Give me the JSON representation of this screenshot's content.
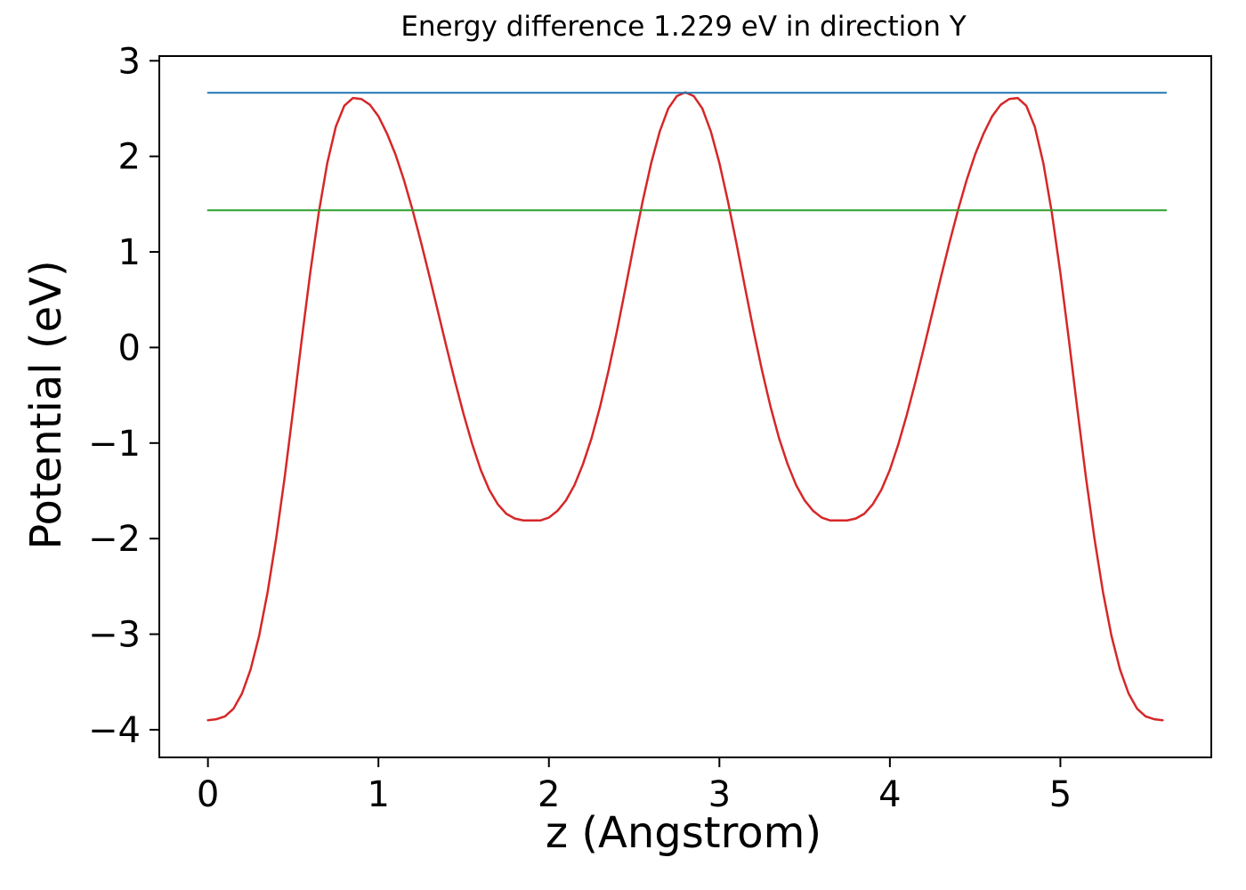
{
  "figure": {
    "background": "#ffffff"
  },
  "chart_data": {
    "type": "line",
    "title": "Energy difference 1.229 eV in direction Y",
    "xlabel": "z (Angstrom)",
    "ylabel": "Potential (eV)",
    "xlim": [
      -0.28,
      5.88
    ],
    "ylim": [
      -4.28,
      3.04
    ],
    "xticks": [
      0,
      1,
      2,
      3,
      4,
      5
    ],
    "yticks": [
      -4,
      -3,
      -2,
      -1,
      0,
      1,
      2,
      3
    ],
    "grid": false,
    "legend": "none",
    "energy_difference_eV": 1.229,
    "direction": "Y",
    "series": [
      {
        "name": "potential-curve",
        "color": "#d62728",
        "width": 2.5,
        "points": [
          [
            0.0,
            -3.9
          ],
          [
            0.05,
            -3.89
          ],
          [
            0.1,
            -3.86
          ],
          [
            0.15,
            -3.78
          ],
          [
            0.2,
            -3.62
          ],
          [
            0.25,
            -3.37
          ],
          [
            0.3,
            -3.02
          ],
          [
            0.35,
            -2.56
          ],
          [
            0.4,
            -2.0
          ],
          [
            0.45,
            -1.36
          ],
          [
            0.5,
            -0.65
          ],
          [
            0.55,
            0.08
          ],
          [
            0.6,
            0.78
          ],
          [
            0.65,
            1.41
          ],
          [
            0.7,
            1.93
          ],
          [
            0.75,
            2.31
          ],
          [
            0.8,
            2.53
          ],
          [
            0.85,
            2.61
          ],
          [
            0.9,
            2.6
          ],
          [
            0.95,
            2.54
          ],
          [
            1.0,
            2.42
          ],
          [
            1.05,
            2.24
          ],
          [
            1.1,
            2.02
          ],
          [
            1.15,
            1.75
          ],
          [
            1.2,
            1.44
          ],
          [
            1.25,
            1.1
          ],
          [
            1.3,
            0.74
          ],
          [
            1.35,
            0.37
          ],
          [
            1.4,
            0.0
          ],
          [
            1.45,
            -0.36
          ],
          [
            1.5,
            -0.7
          ],
          [
            1.55,
            -1.01
          ],
          [
            1.6,
            -1.28
          ],
          [
            1.65,
            -1.49
          ],
          [
            1.7,
            -1.64
          ],
          [
            1.75,
            -1.74
          ],
          [
            1.8,
            -1.79
          ],
          [
            1.85,
            -1.81
          ],
          [
            1.9,
            -1.81
          ],
          [
            1.95,
            -1.81
          ],
          [
            2.0,
            -1.78
          ],
          [
            2.05,
            -1.71
          ],
          [
            2.1,
            -1.6
          ],
          [
            2.15,
            -1.44
          ],
          [
            2.2,
            -1.22
          ],
          [
            2.25,
            -0.95
          ],
          [
            2.3,
            -0.62
          ],
          [
            2.35,
            -0.24
          ],
          [
            2.4,
            0.18
          ],
          [
            2.45,
            0.63
          ],
          [
            2.5,
            1.09
          ],
          [
            2.55,
            1.53
          ],
          [
            2.6,
            1.93
          ],
          [
            2.65,
            2.26
          ],
          [
            2.7,
            2.5
          ],
          [
            2.75,
            2.63
          ],
          [
            2.8,
            2.67
          ],
          [
            2.85,
            2.63
          ],
          [
            2.9,
            2.5
          ],
          [
            2.95,
            2.26
          ],
          [
            3.0,
            1.93
          ],
          [
            3.05,
            1.53
          ],
          [
            3.1,
            1.09
          ],
          [
            3.15,
            0.63
          ],
          [
            3.2,
            0.18
          ],
          [
            3.25,
            -0.24
          ],
          [
            3.3,
            -0.62
          ],
          [
            3.35,
            -0.95
          ],
          [
            3.4,
            -1.22
          ],
          [
            3.45,
            -1.44
          ],
          [
            3.5,
            -1.6
          ],
          [
            3.55,
            -1.71
          ],
          [
            3.6,
            -1.78
          ],
          [
            3.65,
            -1.81
          ],
          [
            3.7,
            -1.81
          ],
          [
            3.75,
            -1.81
          ],
          [
            3.8,
            -1.79
          ],
          [
            3.85,
            -1.74
          ],
          [
            3.9,
            -1.64
          ],
          [
            3.95,
            -1.49
          ],
          [
            4.0,
            -1.28
          ],
          [
            4.05,
            -1.01
          ],
          [
            4.1,
            -0.7
          ],
          [
            4.15,
            -0.36
          ],
          [
            4.2,
            0.0
          ],
          [
            4.25,
            0.37
          ],
          [
            4.3,
            0.74
          ],
          [
            4.35,
            1.1
          ],
          [
            4.4,
            1.44
          ],
          [
            4.45,
            1.75
          ],
          [
            4.5,
            2.02
          ],
          [
            4.55,
            2.24
          ],
          [
            4.6,
            2.42
          ],
          [
            4.65,
            2.54
          ],
          [
            4.7,
            2.6
          ],
          [
            4.75,
            2.61
          ],
          [
            4.8,
            2.53
          ],
          [
            4.85,
            2.31
          ],
          [
            4.9,
            1.93
          ],
          [
            4.95,
            1.41
          ],
          [
            5.0,
            0.78
          ],
          [
            5.05,
            0.08
          ],
          [
            5.1,
            -0.65
          ],
          [
            5.15,
            -1.36
          ],
          [
            5.2,
            -2.0
          ],
          [
            5.25,
            -2.56
          ],
          [
            5.3,
            -3.02
          ],
          [
            5.35,
            -3.37
          ],
          [
            5.4,
            -3.62
          ],
          [
            5.45,
            -3.78
          ],
          [
            5.5,
            -3.86
          ],
          [
            5.55,
            -3.89
          ],
          [
            5.6,
            -3.9
          ]
        ]
      },
      {
        "name": "upper-energy-level",
        "color": "#1f77b4",
        "width": 2,
        "points": [
          [
            0.0,
            2.665
          ],
          [
            5.62,
            2.665
          ]
        ]
      },
      {
        "name": "lower-energy-level",
        "color": "#2ca02c",
        "width": 2,
        "points": [
          [
            0.0,
            1.436
          ],
          [
            5.62,
            1.436
          ]
        ]
      }
    ]
  }
}
